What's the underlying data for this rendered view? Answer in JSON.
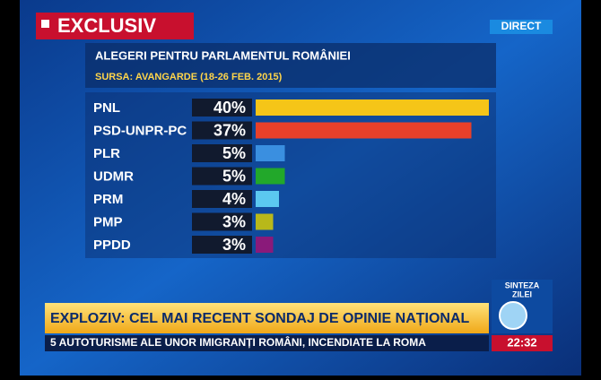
{
  "chart_data": {
    "type": "bar",
    "orientation": "horizontal",
    "title": "ALEGERI PENTRU PARLAMENTUL ROMÂNIEI",
    "subtitle": "SURSA: AVANGARDE (18-26 FEB. 2015)",
    "categories": [
      "PNL",
      "PSD-UNPR-PC",
      "PLR",
      "UDMR",
      "PRM",
      "PMP",
      "PPDD"
    ],
    "values": [
      40,
      37,
      5,
      5,
      4,
      3,
      3
    ],
    "value_labels": [
      "40%",
      "37%",
      "5%",
      "5%",
      "4%",
      "3%",
      "3%"
    ],
    "colors": [
      "#f5c518",
      "#e8402a",
      "#3a8fe0",
      "#22a82a",
      "#5bc8f0",
      "#b8b81a",
      "#8a1a7a"
    ]
  },
  "broadcast": {
    "badge": "EXCLUSIV",
    "live": "DIRECT",
    "show": [
      "SINTEZA",
      "ZILEI"
    ],
    "headline": "EXPLOZIV: CEL MAI RECENT SONDAJ DE OPINIE NAȚIONAL",
    "ticker": "5 AUTOTURISME ALE UNOR IMIGRANȚI ROMÂNI, INCENDIATE LA ROMA",
    "clock": "22:32"
  }
}
